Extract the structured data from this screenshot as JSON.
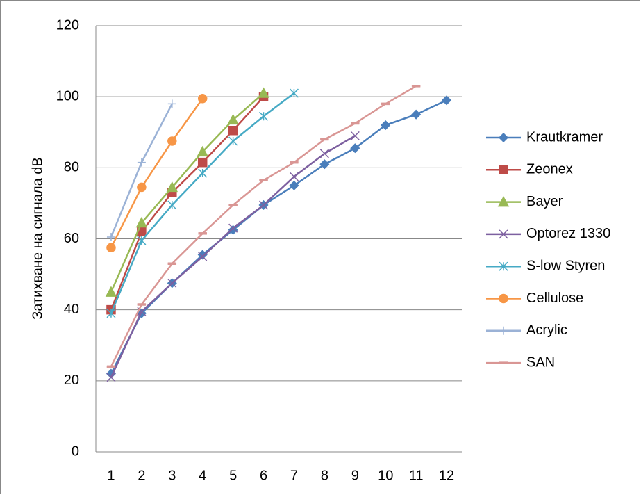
{
  "chart_data": {
    "type": "line",
    "ylabel": "Затихване на сигнала dB",
    "categories": [
      1,
      2,
      3,
      4,
      5,
      6,
      7,
      8,
      9,
      10,
      11,
      12
    ],
    "ylim": [
      0,
      120
    ],
    "yticks": [
      0,
      20,
      40,
      60,
      80,
      100,
      120
    ],
    "grid": true,
    "legend": "right",
    "series": [
      {
        "name": "Krautkramer",
        "color": "#4a7ebb",
        "marker": "diamond",
        "values": [
          22,
          39,
          47.5,
          55.5,
          62.5,
          69.5,
          75,
          81,
          85.5,
          92,
          95,
          99
        ]
      },
      {
        "name": "Zeonex",
        "color": "#be4b48",
        "marker": "square",
        "values": [
          40,
          62,
          73,
          81.5,
          90.5,
          100,
          null,
          null,
          null,
          null,
          null,
          null
        ]
      },
      {
        "name": "Bayer",
        "color": "#98b954",
        "marker": "triangle",
        "values": [
          45,
          64.5,
          74.5,
          84.5,
          93.5,
          101,
          null,
          null,
          null,
          null,
          null,
          null
        ]
      },
      {
        "name": "Optorez 1330",
        "color": "#7d60a0",
        "marker": "x",
        "values": [
          21,
          39.5,
          47.5,
          55,
          63,
          69.5,
          77.5,
          84,
          89,
          null,
          null,
          null
        ]
      },
      {
        "name": "S-low Styren",
        "color": "#46aac5",
        "marker": "star",
        "values": [
          39,
          59.5,
          69.5,
          78.5,
          87.5,
          94.5,
          101,
          null,
          null,
          null,
          null,
          null
        ]
      },
      {
        "name": "Cellulose",
        "color": "#f79646",
        "marker": "circle",
        "values": [
          57.5,
          74.5,
          87.5,
          99.5,
          null,
          null,
          null,
          null,
          null,
          null,
          null,
          null
        ]
      },
      {
        "name": "Acrylic",
        "color": "#9bb2d6",
        "marker": "plus",
        "values": [
          60.5,
          81.5,
          98,
          null,
          null,
          null,
          null,
          null,
          null,
          null,
          null,
          null
        ]
      },
      {
        "name": "SAN",
        "color": "#d99694",
        "marker": "dash",
        "values": [
          24,
          41.5,
          53,
          61.5,
          69.5,
          76.5,
          81.5,
          88,
          92.5,
          98,
          103,
          null
        ]
      }
    ]
  }
}
